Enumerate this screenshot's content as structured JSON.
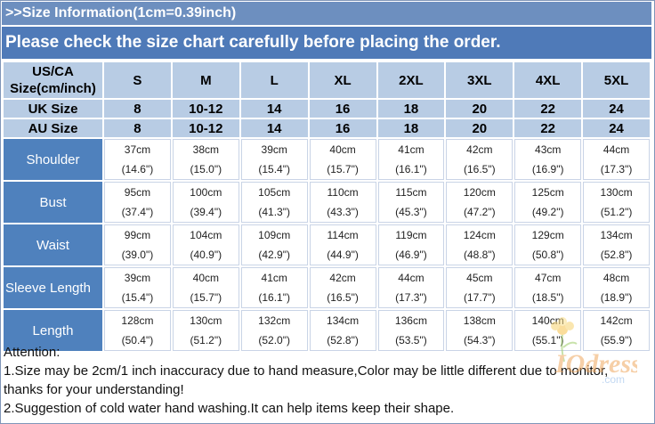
{
  "header": {
    "title": ">>Size Information(1cm=0.39inch)",
    "subtitle": "Please check the size chart carefully before placing the order."
  },
  "table": {
    "corner_label": "US/CA\nSize(cm/inch)",
    "sizes": [
      "S",
      "M",
      "L",
      "XL",
      "2XL",
      "3XL",
      "4XL",
      "5XL"
    ],
    "uk": {
      "label": "UK Size",
      "values": [
        "8",
        "10-12",
        "14",
        "16",
        "18",
        "20",
        "22",
        "24"
      ]
    },
    "au": {
      "label": "AU Size",
      "values": [
        "8",
        "10-12",
        "14",
        "16",
        "18",
        "20",
        "22",
        "24"
      ]
    },
    "measurements": [
      {
        "label": "Shoulder",
        "cm": [
          "37cm",
          "38cm",
          "39cm",
          "40cm",
          "41cm",
          "42cm",
          "43cm",
          "44cm"
        ],
        "inch": [
          "(14.6\")",
          "(15.0\")",
          "(15.4\")",
          "(15.7\")",
          "(16.1\")",
          "(16.5\")",
          "(16.9\")",
          "(17.3\")"
        ]
      },
      {
        "label": "Bust",
        "cm": [
          "95cm",
          "100cm",
          "105cm",
          "110cm",
          "115cm",
          "120cm",
          "125cm",
          "130cm"
        ],
        "inch": [
          "(37.4\")",
          "(39.4\")",
          "(41.3\")",
          "(43.3\")",
          "(45.3\")",
          "(47.2\")",
          "(49.2\")",
          "(51.2\")"
        ]
      },
      {
        "label": "Waist",
        "cm": [
          "99cm",
          "104cm",
          "109cm",
          "114cm",
          "119cm",
          "124cm",
          "129cm",
          "134cm"
        ],
        "inch": [
          "(39.0\")",
          "(40.9\")",
          "(42.9\")",
          "(44.9\")",
          "(46.9\")",
          "(48.8\")",
          "(50.8\")",
          "(52.8\")"
        ]
      },
      {
        "label": "Sleeve Length",
        "cm": [
          "39cm",
          "40cm",
          "41cm",
          "42cm",
          "44cm",
          "45cm",
          "47cm",
          "48cm"
        ],
        "inch": [
          "(15.4\")",
          "(15.7\")",
          "(16.1\")",
          "(16.5\")",
          "(17.3\")",
          "(17.7\")",
          "(18.5\")",
          "(18.9\")"
        ]
      },
      {
        "label": "Length",
        "cm": [
          "128cm",
          "130cm",
          "132cm",
          "134cm",
          "136cm",
          "138cm",
          "140cm",
          "142cm"
        ],
        "inch": [
          "(50.4\")",
          "(51.2\")",
          "(52.0\")",
          "(52.8\")",
          "(53.5\")",
          "(54.3\")",
          "(55.1\")",
          "(55.9\")"
        ]
      }
    ]
  },
  "attention": {
    "title": "Attention:",
    "line1": "1.Size may be 2cm/1 inch inaccuracy due to hand measure,Color may be little different due to monitor,",
    "line2": "thanks for your understanding!",
    "line3": "2.Suggestion of cold water hand washing.It can help items keep their shape."
  },
  "watermark": {
    "brand": "IOdress",
    "suffix": ".com"
  },
  "colors": {
    "header_light": "#6d8fbf",
    "header_dark": "#4f7ab8",
    "row_label": "#4f81bd",
    "header_cell": "#b8cce4"
  }
}
